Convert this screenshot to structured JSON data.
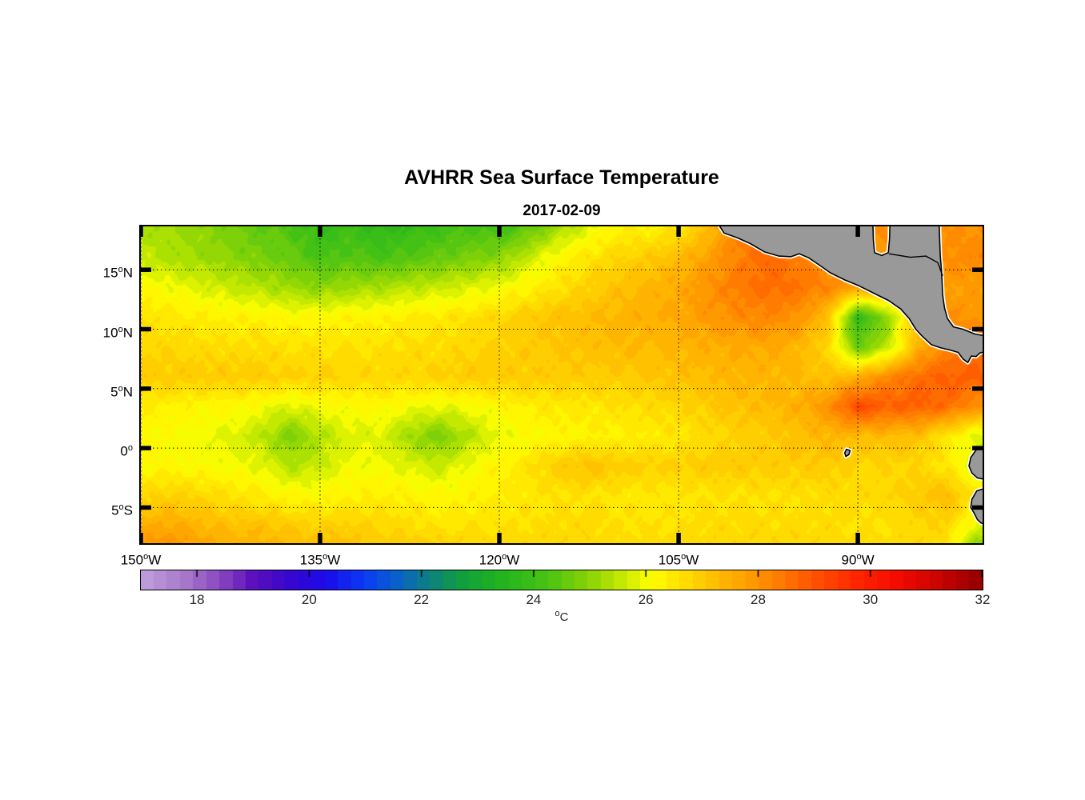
{
  "title": "AVHRR Sea Surface Temperature",
  "subtitle": "2017-02-09",
  "deg_char": "o",
  "colors": {
    "background": "#ffffff",
    "axis": "#000000",
    "grid": "#000000",
    "land_fill": "#999999",
    "coast_line": "#000000",
    "nodata_halo": "#ffffff",
    "label_text": "#262626"
  },
  "chart_data": {
    "type": "heatmap",
    "title": "AVHRR Sea Surface Temperature",
    "subtitle": "2017-02-09",
    "xlabel": "",
    "ylabel": "",
    "units": "°C",
    "lon_range": [
      -150,
      -79.56
    ],
    "lat_range": [
      -8.0,
      18.65
    ],
    "grid_on": true,
    "xticks": [
      {
        "value": -150,
        "num": "150",
        "hemi": "W"
      },
      {
        "value": -135,
        "num": "135",
        "hemi": "W"
      },
      {
        "value": -120,
        "num": "120",
        "hemi": "W"
      },
      {
        "value": -105,
        "num": "105",
        "hemi": "W"
      },
      {
        "value": -90,
        "num": "90",
        "hemi": "W"
      }
    ],
    "yticks": [
      {
        "value": 15,
        "num": "15",
        "hemi": "N"
      },
      {
        "value": 10,
        "num": "10",
        "hemi": "N"
      },
      {
        "value": 5,
        "num": "5",
        "hemi": "N"
      },
      {
        "value": 0,
        "num": "0",
        "hemi": ""
      },
      {
        "value": -5,
        "num": "5",
        "hemi": "S"
      }
    ],
    "colorbar": {
      "min": 17,
      "max": 32,
      "levels": 64,
      "orientation": "horizontal",
      "position": "bottom",
      "tick_values": [
        18,
        20,
        22,
        24,
        26,
        28,
        30,
        32
      ],
      "tick_labels": [
        "18",
        "20",
        "22",
        "24",
        "26",
        "28",
        "30",
        "32"
      ],
      "unit_sup": "o",
      "unit_text": "C",
      "stops": [
        [
          17.0,
          "#c2a1dc"
        ],
        [
          17.8,
          "#a678cb"
        ],
        [
          18.4,
          "#8c49c0"
        ],
        [
          19.0,
          "#5d10bb"
        ],
        [
          19.6,
          "#3a07cc"
        ],
        [
          20.3,
          "#1b0bea"
        ],
        [
          21.0,
          "#0a3cf5"
        ],
        [
          21.6,
          "#0b62c8"
        ],
        [
          22.1,
          "#0d7f86"
        ],
        [
          22.7,
          "#109e3f"
        ],
        [
          23.4,
          "#21b31f"
        ],
        [
          24.2,
          "#46c214"
        ],
        [
          25.0,
          "#8ad406"
        ],
        [
          25.7,
          "#d3ee00"
        ],
        [
          26.1,
          "#ffff00"
        ],
        [
          26.7,
          "#ffdd00"
        ],
        [
          27.3,
          "#ffbb00"
        ],
        [
          27.9,
          "#ff9900"
        ],
        [
          28.5,
          "#ff7400"
        ],
        [
          29.1,
          "#ff4d00"
        ],
        [
          29.8,
          "#ff2400"
        ],
        [
          30.5,
          "#f30b00"
        ],
        [
          31.2,
          "#cb0400"
        ],
        [
          32.0,
          "#920000"
        ]
      ]
    },
    "sst_grid": {
      "lons": [
        -150,
        -147.5,
        -145,
        -142.5,
        -140,
        -137.5,
        -135,
        -132.5,
        -130,
        -127.5,
        -125,
        -122.5,
        -120,
        -117.5,
        -115,
        -112.5,
        -110,
        -107.5,
        -105,
        -102.5,
        -100,
        -97.5,
        -95,
        -92.5,
        -90,
        -87.5,
        -85,
        -82.5,
        -80
      ],
      "lats": [
        18.65,
        16,
        13.5,
        11,
        8.5,
        6,
        3.5,
        1,
        -1.5,
        -4,
        -6.5,
        -8.0
      ],
      "values": [
        [
          25.3,
          25.2,
          25.0,
          24.8,
          24.5,
          24.3,
          23.8,
          24.0,
          23.7,
          23.8,
          24.0,
          24.2,
          24.0,
          24.5,
          25.2,
          25.8,
          26.3,
          26.3,
          26.5,
          27.2,
          28.4,
          28.6,
          28.4,
          28.2,
          28.0,
          28.0,
          28.0,
          28.0,
          28.0
        ],
        [
          25.6,
          25.3,
          25.2,
          25.0,
          24.8,
          24.6,
          24.2,
          24.4,
          24.2,
          24.4,
          24.6,
          24.8,
          25.0,
          25.6,
          26.2,
          26.6,
          26.8,
          27.0,
          27.3,
          27.8,
          28.3,
          28.7,
          28.3,
          28.0,
          28.0,
          28.0,
          28.0,
          28.1,
          28.2
        ],
        [
          26.2,
          26.0,
          25.8,
          25.6,
          25.4,
          25.2,
          25.0,
          25.2,
          25.3,
          25.5,
          25.6,
          25.8,
          26.0,
          26.3,
          26.6,
          26.9,
          27.2,
          27.4,
          27.6,
          28.0,
          28.4,
          28.6,
          28.5,
          28.2,
          27.8,
          27.6,
          27.5,
          27.8,
          27.8
        ],
        [
          26.6,
          26.5,
          26.4,
          26.3,
          26.3,
          26.2,
          26.2,
          26.3,
          26.3,
          26.4,
          26.5,
          26.6,
          26.8,
          27.0,
          27.2,
          27.3,
          27.4,
          27.5,
          27.6,
          27.9,
          28.1,
          28.2,
          28.0,
          27.2,
          23.8,
          25.0,
          27.5,
          28.0,
          28.0
        ],
        [
          26.8,
          26.8,
          26.7,
          26.7,
          26.7,
          26.6,
          26.6,
          26.6,
          26.6,
          26.7,
          26.7,
          26.8,
          26.9,
          27.0,
          27.1,
          27.2,
          27.3,
          27.3,
          27.4,
          27.5,
          27.6,
          27.6,
          27.4,
          26.8,
          24.6,
          25.5,
          27.4,
          28.3,
          28.5
        ],
        [
          27.0,
          27.0,
          27.0,
          27.0,
          27.0,
          26.9,
          26.9,
          26.8,
          26.8,
          26.8,
          26.9,
          27.0,
          27.0,
          27.0,
          27.0,
          27.0,
          27.0,
          27.1,
          27.2,
          27.3,
          27.4,
          27.4,
          27.3,
          27.2,
          27.5,
          28.2,
          28.6,
          28.8,
          28.8
        ],
        [
          26.4,
          26.3,
          26.2,
          26.2,
          26.0,
          25.8,
          26.0,
          26.1,
          26.2,
          26.0,
          25.9,
          26.0,
          26.2,
          26.4,
          26.5,
          26.5,
          26.6,
          26.7,
          26.8,
          27.0,
          27.2,
          27.3,
          27.5,
          28.0,
          29.2,
          28.8,
          28.8,
          28.6,
          28.0
        ],
        [
          26.2,
          26.1,
          26.0,
          25.8,
          25.5,
          24.8,
          25.4,
          25.8,
          25.8,
          25.2,
          24.8,
          25.4,
          25.9,
          26.1,
          26.2,
          26.3,
          26.3,
          26.4,
          26.5,
          26.7,
          26.9,
          27.0,
          27.2,
          27.4,
          27.3,
          27.3,
          27.2,
          26.5,
          25.8
        ],
        [
          26.2,
          26.2,
          26.1,
          26.0,
          25.9,
          25.4,
          25.6,
          26.0,
          26.0,
          25.8,
          25.6,
          26.0,
          26.3,
          26.6,
          27.0,
          27.2,
          27.0,
          26.9,
          26.9,
          27.0,
          27.0,
          27.0,
          27.0,
          27.0,
          26.8,
          26.8,
          26.8,
          26.5,
          25.6
        ],
        [
          26.8,
          26.9,
          26.8,
          26.6,
          26.4,
          26.2,
          26.2,
          26.3,
          26.4,
          26.3,
          26.2,
          26.3,
          26.4,
          26.5,
          26.6,
          26.6,
          26.5,
          26.5,
          26.5,
          26.6,
          26.6,
          26.6,
          26.6,
          26.7,
          26.7,
          26.8,
          27.0,
          27.3,
          26.5
        ],
        [
          27.5,
          27.6,
          27.4,
          27.2,
          27.2,
          27.0,
          26.9,
          26.9,
          26.8,
          26.7,
          26.5,
          26.6,
          26.6,
          26.6,
          26.7,
          26.7,
          26.6,
          26.6,
          26.6,
          26.7,
          26.7,
          26.7,
          26.7,
          26.7,
          26.6,
          26.6,
          26.8,
          26.8,
          25.8
        ],
        [
          27.8,
          28.0,
          27.7,
          27.5,
          27.4,
          27.3,
          27.2,
          27.2,
          27.0,
          27.0,
          26.9,
          26.8,
          26.8,
          26.8,
          26.8,
          26.8,
          26.7,
          26.7,
          26.7,
          26.8,
          26.8,
          26.8,
          26.8,
          26.8,
          26.7,
          26.7,
          26.8,
          26.6,
          25.0
        ]
      ]
    },
    "land_polygons": [
      [
        [
          -101.9,
          19.2
        ],
        [
          -101.2,
          18.1
        ],
        [
          -100.1,
          17.7
        ],
        [
          -99.0,
          17.2
        ],
        [
          -97.8,
          16.5
        ],
        [
          -96.6,
          16.15
        ],
        [
          -95.6,
          16.1
        ],
        [
          -94.9,
          16.35
        ],
        [
          -94.1,
          16.0
        ],
        [
          -93.3,
          15.45
        ],
        [
          -92.3,
          14.75
        ],
        [
          -91.1,
          14.15
        ],
        [
          -89.9,
          13.65
        ],
        [
          -88.6,
          13.0
        ],
        [
          -87.4,
          12.4
        ],
        [
          -86.4,
          11.7
        ],
        [
          -85.7,
          10.9
        ],
        [
          -85.15,
          10.0
        ],
        [
          -84.65,
          9.45
        ],
        [
          -83.85,
          8.7
        ],
        [
          -83.1,
          8.45
        ],
        [
          -82.3,
          8.25
        ],
        [
          -81.6,
          8.05
        ],
        [
          -81.2,
          7.5
        ],
        [
          -80.8,
          7.2
        ],
        [
          -80.5,
          7.75
        ],
        [
          -80.1,
          7.7
        ],
        [
          -79.8,
          8.0
        ],
        [
          -79.1,
          8.2
        ],
        [
          -79.1,
          9.4
        ],
        [
          -80.2,
          9.6
        ],
        [
          -81.2,
          10.0
        ],
        [
          -82.0,
          10.2
        ],
        [
          -82.5,
          10.9
        ],
        [
          -82.75,
          11.8
        ],
        [
          -82.9,
          12.9
        ],
        [
          -82.95,
          14.0
        ],
        [
          -83.0,
          15.0
        ],
        [
          -83.1,
          16.2
        ],
        [
          -83.15,
          17.5
        ],
        [
          -83.2,
          19.2
        ],
        [
          -87.3,
          19.2
        ],
        [
          -87.35,
          17.6
        ],
        [
          -87.45,
          16.45
        ],
        [
          -88.0,
          16.2
        ],
        [
          -88.6,
          16.45
        ],
        [
          -88.7,
          17.5
        ],
        [
          -88.75,
          19.2
        ]
      ],
      [
        [
          -79.1,
          0.25
        ],
        [
          -80.1,
          -0.15
        ],
        [
          -80.55,
          -0.8
        ],
        [
          -80.7,
          -1.5
        ],
        [
          -80.45,
          -2.1
        ],
        [
          -80.0,
          -2.5
        ],
        [
          -79.1,
          -2.7
        ]
      ],
      [
        [
          -79.1,
          -3.3
        ],
        [
          -80.05,
          -3.6
        ],
        [
          -80.45,
          -4.3
        ],
        [
          -80.55,
          -5.0
        ],
        [
          -80.25,
          -5.5
        ],
        [
          -80.0,
          -6.0
        ],
        [
          -79.7,
          -6.3
        ],
        [
          -79.1,
          -6.45
        ]
      ],
      [
        [
          -90.95,
          -0.1
        ],
        [
          -90.65,
          -0.2
        ],
        [
          -90.75,
          -0.55
        ],
        [
          -91.0,
          -0.7
        ],
        [
          -91.1,
          -0.4
        ]
      ]
    ],
    "coast_lines": [
      [
        [
          -87.4,
          16.35
        ],
        [
          -85.6,
          16.05
        ],
        [
          -84.3,
          16.15
        ],
        [
          -83.3,
          15.6
        ],
        [
          -82.9,
          14.5
        ]
      ]
    ]
  }
}
